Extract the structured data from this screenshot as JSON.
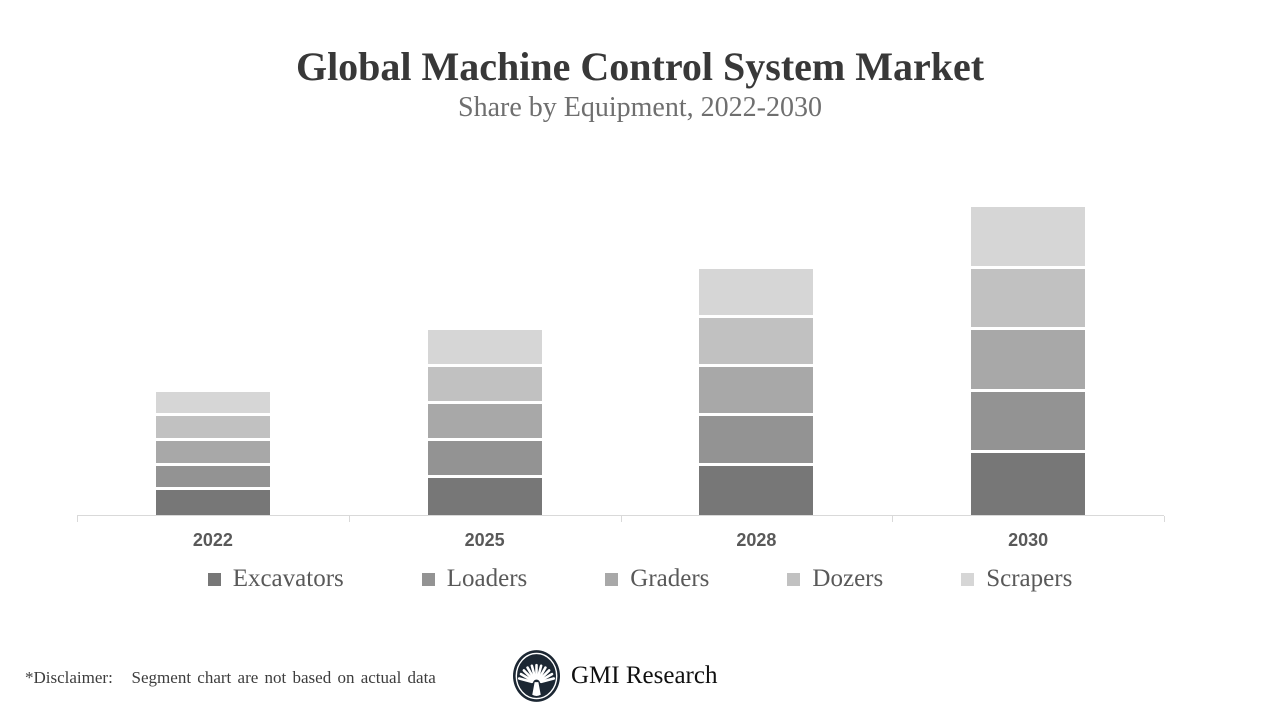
{
  "slide": {
    "title": "Global Machine Control System Market",
    "subtitle": "Share by Equipment, 2022-2030",
    "footer": {
      "disclaimer": "*Disclaimer:   Segment chart are not based on actual data",
      "brand": "GMI Research",
      "logo_icon": "palm-fan-emblem",
      "logo_color": "#1c2733"
    }
  },
  "chart_data": {
    "type": "bar",
    "stacked": true,
    "title": "Global Machine Control System Market",
    "subtitle": "Share by Equipment, 2022-2030",
    "categories": [
      "2022",
      "2025",
      "2028",
      "2030"
    ],
    "series": [
      {
        "name": "Excavators",
        "color": "#777777",
        "values": [
          5,
          7.5,
          10,
          12.5
        ]
      },
      {
        "name": "Loaders",
        "color": "#939393",
        "values": [
          5,
          7.5,
          10,
          12.5
        ]
      },
      {
        "name": "Graders",
        "color": "#a8a8a8",
        "values": [
          5,
          7.5,
          10,
          12.5
        ]
      },
      {
        "name": "Dozers",
        "color": "#c1c1c1",
        "values": [
          5,
          7.5,
          10,
          12.5
        ]
      },
      {
        "name": "Scrapers",
        "color": "#d6d6d6",
        "values": [
          5,
          7.5,
          10,
          12.5
        ]
      }
    ],
    "stack_totals": [
      25,
      37.5,
      50,
      62.5
    ],
    "xlabel": "",
    "ylabel": "",
    "ylim": [
      0,
      65
    ],
    "y_axis_visible": false,
    "grid": false,
    "legend_position": "bottom",
    "axis_color": "#d9d9d9",
    "category_label_color": "#595959",
    "segment_gap_color": "#ffffff"
  }
}
